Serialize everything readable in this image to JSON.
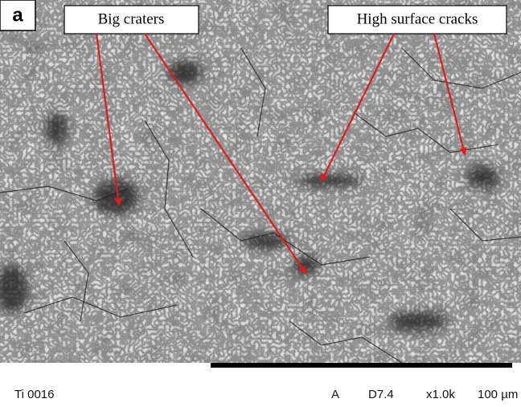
{
  "panel_label": "a",
  "annotations": [
    {
      "label": "Big craters"
    },
    {
      "label": "High surface cracks"
    }
  ],
  "info_bar": {
    "sample": "Ti 0016",
    "mode": "A",
    "distance": "D7.4",
    "magnification": "x1.0k",
    "scale": "100 µm"
  }
}
